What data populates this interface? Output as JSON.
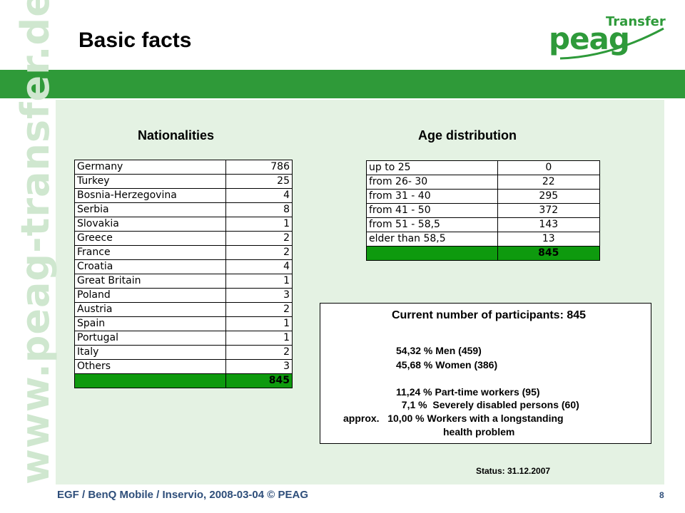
{
  "title": "Basic facts",
  "logo": {
    "peag": "peag",
    "transfer": "Transfer"
  },
  "watermark": "www.peag-transfer.de",
  "nationalities": {
    "heading": "Nationalities",
    "rows": [
      {
        "label": "Germany",
        "value": "786"
      },
      {
        "label": "Turkey",
        "value": "25"
      },
      {
        "label": "Bosnia-Herzegovina",
        "value": "4"
      },
      {
        "label": "Serbia",
        "value": "8"
      },
      {
        "label": "Slovakia",
        "value": "1"
      },
      {
        "label": "Greece",
        "value": "2"
      },
      {
        "label": "France",
        "value": "2"
      },
      {
        "label": "Croatia",
        "value": "4"
      },
      {
        "label": "Great Britain",
        "value": "1"
      },
      {
        "label": "Poland",
        "value": "3"
      },
      {
        "label": "Austria",
        "value": "2"
      },
      {
        "label": "Spain",
        "value": "1"
      },
      {
        "label": "Portugal",
        "value": "1"
      },
      {
        "label": "Italy",
        "value": "2"
      },
      {
        "label": "Others",
        "value": "3"
      }
    ],
    "total": {
      "label": "",
      "value": "845"
    }
  },
  "age": {
    "heading": "Age distribution",
    "rows": [
      {
        "label": "up to 25",
        "value": "0"
      },
      {
        "label": "from  26- 30",
        "value": "22"
      },
      {
        "label": "from  31 - 40",
        "value": "295"
      },
      {
        "label": "from  41 - 50",
        "value": "372"
      },
      {
        "label": "from 51 - 58,5",
        "value": "143"
      },
      {
        "label": "elder than 58,5",
        "value": "13"
      }
    ],
    "total": {
      "label": "",
      "value": "845"
    }
  },
  "participants": {
    "heading": "Current number of participants: 845",
    "lines": [
      "54,32 % Men (459)",
      "45,68 % Women (386)",
      "11,24 % Part-time workers (95)",
      "  7,1 %  Severely disabled persons (60)",
      "approx.   10,00 % Workers with a longstanding",
      "health problem"
    ]
  },
  "status": "Status:  31.12.2007",
  "footer": "EGF /  BenQ Mobile / Inservio, 2008-03-04 © PEAG",
  "page_number": "8",
  "colors": {
    "brand_green": "#2f9a39",
    "panel_bg": "#e4f2e3",
    "total_row": "#0e9a0e",
    "footer_text": "#2e4e7a"
  }
}
